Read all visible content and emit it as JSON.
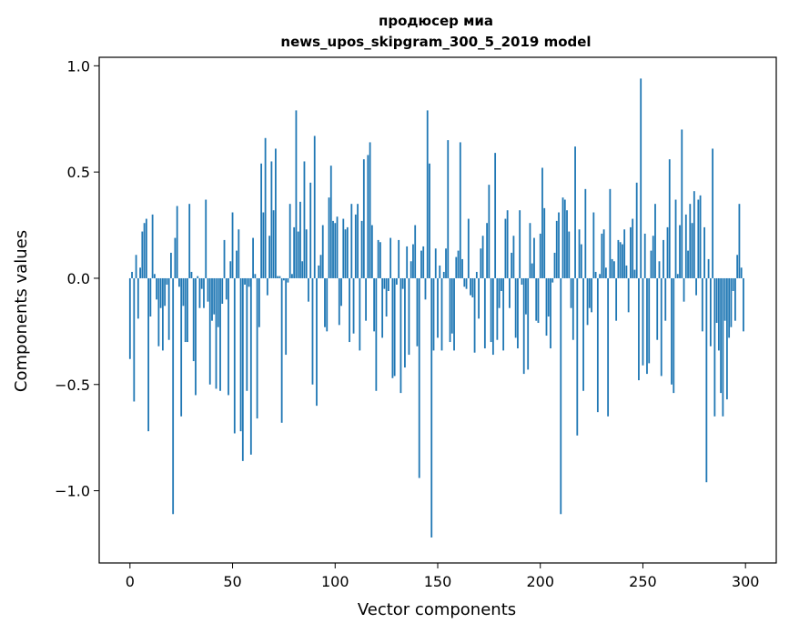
{
  "chart_data": {
    "type": "bar",
    "title_line1": "продюсер миа",
    "title_line2": "news_upos_skipgram_300_5_2019 model",
    "xlabel": "Vector components",
    "ylabel": "Components values",
    "xlim": [
      -15,
      315
    ],
    "ylim": [
      -1.34,
      1.04
    ],
    "xticks": [
      0,
      50,
      100,
      150,
      200,
      250,
      300
    ],
    "xtick_labels": [
      "0",
      "50",
      "100",
      "150",
      "200",
      "250",
      "300"
    ],
    "yticks": [
      -1.0,
      -0.5,
      0.0,
      0.5,
      1.0
    ],
    "ytick_labels": [
      "−1.0",
      "−0.5",
      "0.0",
      "0.5",
      "1.0"
    ],
    "bar_color": "#1f77b4",
    "grid": false,
    "values": [
      -0.38,
      0.03,
      -0.58,
      0.11,
      -0.19,
      0.05,
      0.22,
      0.26,
      0.28,
      -0.72,
      -0.18,
      0.3,
      0.02,
      -0.1,
      -0.32,
      -0.14,
      -0.34,
      -0.13,
      -0.03,
      -0.29,
      0.12,
      -1.11,
      0.19,
      0.34,
      -0.04,
      -0.65,
      -0.13,
      -0.3,
      -0.3,
      0.35,
      0.03,
      -0.39,
      -0.55,
      0.01,
      -0.14,
      -0.05,
      -0.14,
      0.37,
      -0.11,
      -0.5,
      -0.2,
      -0.17,
      -0.52,
      -0.23,
      -0.53,
      -0.12,
      0.18,
      -0.1,
      -0.55,
      0.08,
      0.31,
      -0.73,
      0.13,
      0.23,
      -0.72,
      -0.86,
      -0.03,
      -0.53,
      -0.04,
      -0.83,
      0.19,
      0.02,
      -0.66,
      -0.23,
      0.54,
      0.31,
      0.66,
      -0.08,
      0.2,
      0.55,
      0.32,
      0.61,
      0.01,
      0.01,
      -0.68,
      -0.01,
      -0.36,
      -0.02,
      0.35,
      0.02,
      0.24,
      0.79,
      0.22,
      0.36,
      0.08,
      0.55,
      0.23,
      -0.11,
      0.45,
      -0.5,
      0.67,
      -0.6,
      0.06,
      0.11,
      0.25,
      -0.23,
      -0.25,
      0.38,
      0.53,
      0.27,
      0.26,
      0.29,
      -0.22,
      -0.13,
      0.28,
      0.23,
      0.24,
      -0.3,
      0.35,
      -0.26,
      0.3,
      0.35,
      -0.34,
      0.27,
      0.56,
      -0.2,
      0.58,
      0.64,
      0.25,
      -0.25,
      -0.53,
      0.18,
      0.17,
      -0.28,
      -0.05,
      -0.18,
      -0.06,
      0.19,
      -0.47,
      -0.46,
      -0.03,
      0.18,
      -0.54,
      -0.05,
      -0.42,
      0.15,
      -0.36,
      0.08,
      0.16,
      0.25,
      -0.32,
      -0.94,
      0.13,
      0.15,
      -0.1,
      0.79,
      0.54,
      -1.22,
      -0.34,
      0.14,
      -0.28,
      0.06,
      -0.34,
      0.03,
      0.14,
      0.65,
      -0.3,
      -0.26,
      -0.34,
      0.1,
      0.13,
      0.64,
      0.09,
      -0.04,
      -0.05,
      0.28,
      -0.08,
      -0.09,
      -0.35,
      0.03,
      -0.19,
      0.14,
      0.2,
      -0.33,
      0.26,
      0.44,
      -0.3,
      -0.36,
      0.59,
      -0.29,
      -0.14,
      -0.06,
      -0.34,
      0.28,
      0.32,
      -0.14,
      0.12,
      0.2,
      -0.28,
      -0.33,
      0.32,
      -0.03,
      -0.45,
      -0.17,
      -0.43,
      0.26,
      0.07,
      0.19,
      -0.2,
      -0.21,
      0.21,
      0.52,
      0.33,
      -0.27,
      -0.18,
      -0.33,
      -0.02,
      0.12,
      0.27,
      0.31,
      -1.11,
      0.38,
      0.37,
      0.32,
      0.22,
      -0.14,
      -0.29,
      0.62,
      -0.74,
      0.23,
      0.16,
      -0.53,
      0.42,
      -0.22,
      -0.14,
      -0.16,
      0.31,
      0.03,
      -0.63,
      0.02,
      0.21,
      0.23,
      0.05,
      -0.65,
      0.42,
      0.09,
      0.08,
      -0.2,
      0.18,
      0.17,
      0.16,
      0.23,
      0.06,
      -0.16,
      0.24,
      0.28,
      0.04,
      0.45,
      -0.48,
      0.94,
      -0.41,
      0.21,
      -0.45,
      -0.4,
      0.13,
      0.2,
      0.35,
      -0.29,
      0.08,
      -0.46,
      0.18,
      -0.2,
      0.24,
      0.56,
      -0.5,
      -0.54,
      0.37,
      0.02,
      0.25,
      0.7,
      -0.11,
      0.3,
      0.13,
      0.35,
      0.26,
      0.41,
      -0.08,
      0.37,
      0.39,
      -0.25,
      0.24,
      -0.96,
      0.09,
      -0.32,
      0.61,
      -0.65,
      -0.21,
      -0.34,
      -0.54,
      -0.65,
      -0.2,
      -0.57,
      -0.28,
      -0.23,
      -0.06,
      -0.2,
      0.11,
      0.35,
      0.05,
      -0.25
    ]
  }
}
